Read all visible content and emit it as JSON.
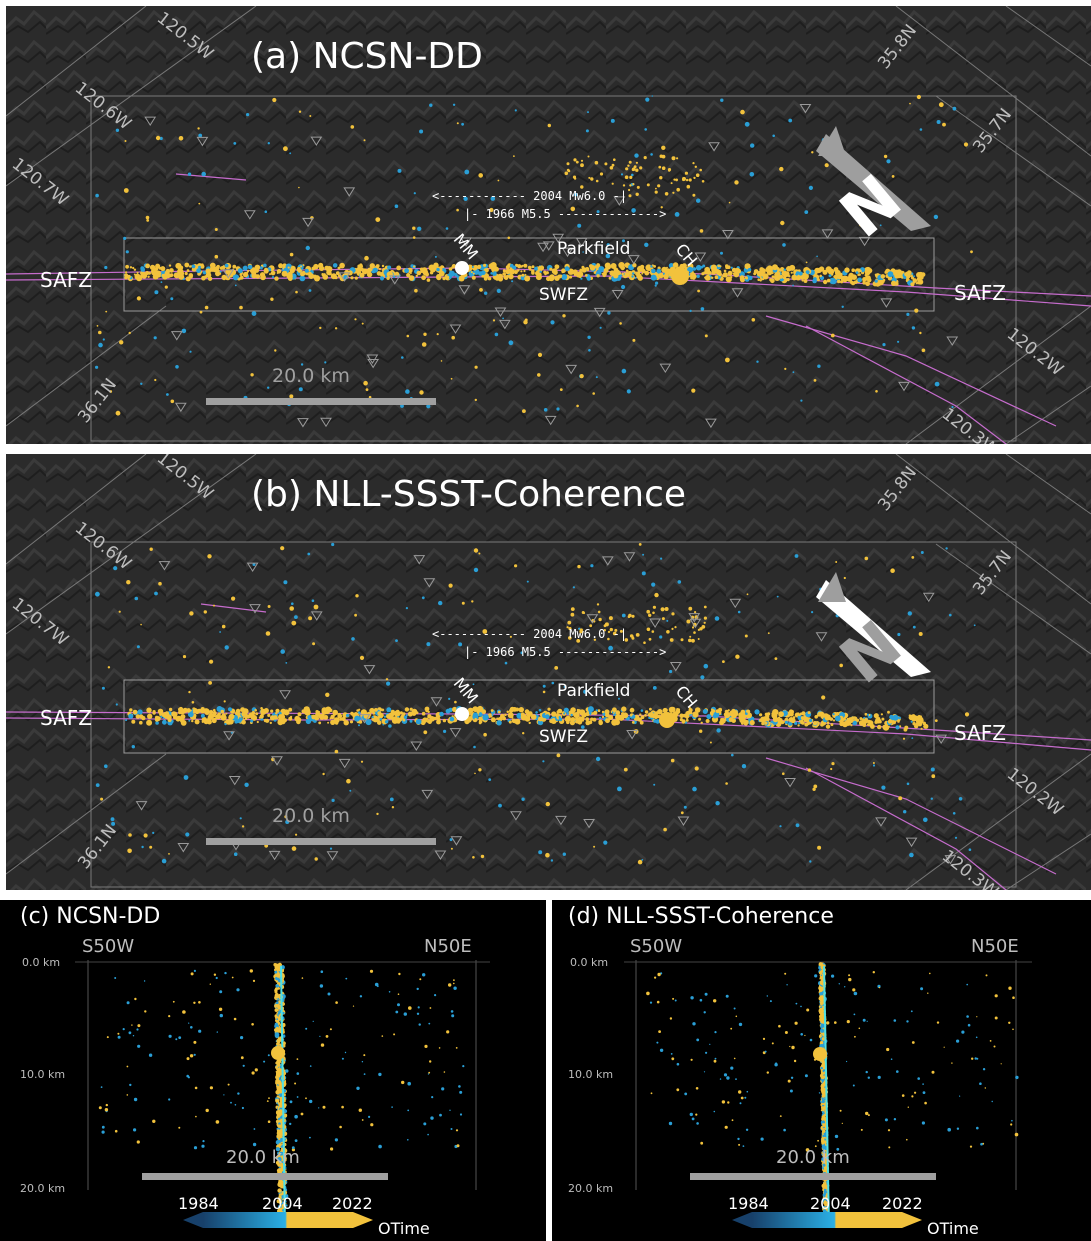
{
  "colors": {
    "early": "#2a9fd6",
    "late": "#f2c23c",
    "fault": "#c66ccd",
    "panel_bg": "#2b2b2b",
    "scale_bar": "#a0a0a0",
    "station": "#9a9a9a"
  },
  "map_panels": [
    {
      "title": "(a) NCSN-DD",
      "grid_labels": [
        "120.5W",
        "120.6W",
        "120.7W",
        "35.8N",
        "35.7N",
        "36.1N",
        "120.2W",
        "120.3W"
      ],
      "range_2004": "<------------ 2004 Mw6.0 -|",
      "range_1966": "|- 1966 M5.5 -------------->",
      "place_labels": {
        "parkfield": "Parkfield",
        "mm": "MM",
        "ch": "CH",
        "swfz": "SWFZ",
        "safz_left": "SAFZ",
        "safz_right": "SAFZ"
      },
      "scale_label": "20.0 km",
      "north_label": "N"
    },
    {
      "title": "(b) NLL-SSST-Coherence",
      "grid_labels": [
        "120.5W",
        "120.6W",
        "120.7W",
        "35.8N",
        "35.7N",
        "36.1N",
        "120.2W",
        "120.3W"
      ],
      "range_2004": "<------------ 2004 Mw6.0 -|",
      "range_1966": "|- 1966 M5.5 -------------->",
      "place_labels": {
        "parkfield": "Parkfield",
        "mm": "MM",
        "ch": "CH",
        "swfz": "SWFZ",
        "safz_left": "SAFZ",
        "safz_right": "SAFZ"
      },
      "scale_label": "20.0 km",
      "north_label": "N"
    }
  ],
  "section_panels": [
    {
      "title": "(c) NCSN-DD",
      "left_dir": "S50W",
      "right_dir": "N50E",
      "depth_labels": [
        "0.0 km",
        "10.0 km",
        "20.0 km"
      ],
      "scale_label": "20.0 km",
      "colorbar": {
        "ticks": [
          "1984",
          "2004",
          "2022"
        ],
        "label": "OTime"
      }
    },
    {
      "title": "(d) NLL-SSST-Coherence",
      "left_dir": "S50W",
      "right_dir": "N50E",
      "depth_labels": [
        "0.0 km",
        "10.0 km",
        "20.0 km"
      ],
      "scale_label": "20.0 km",
      "colorbar": {
        "ticks": [
          "1984",
          "2004",
          "2022"
        ],
        "label": "OTime"
      }
    }
  ]
}
